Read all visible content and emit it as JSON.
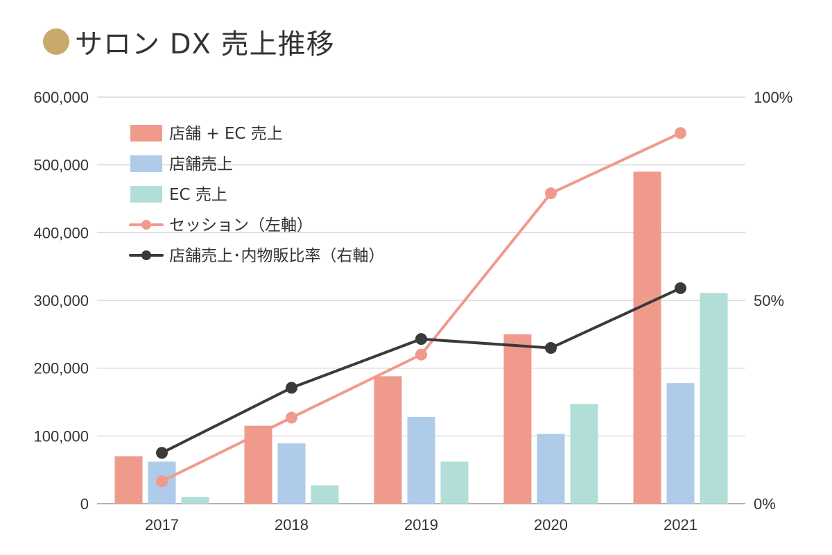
{
  "header": {
    "title": "サロン DX 売上推移",
    "dot_color": "#c8a96a"
  },
  "chart_data": {
    "type": "bar",
    "title": "サロン DX 売上推移",
    "categories": [
      "2017",
      "2018",
      "2019",
      "2020",
      "2021"
    ],
    "y_left": {
      "min": 0,
      "max": 600000,
      "ticks": [
        0,
        100000,
        200000,
        300000,
        400000,
        500000,
        600000
      ],
      "tick_labels": [
        "0",
        "100,000",
        "200,000",
        "300,000",
        "400,000",
        "500,000",
        "600,000"
      ]
    },
    "y_right": {
      "min": 0,
      "max": 100,
      "ticks": [
        0,
        50,
        100
      ],
      "tick_labels": [
        "0%",
        "50%",
        "100%"
      ]
    },
    "grid": true,
    "legend_position": "top-left",
    "series": [
      {
        "name": "店舗 + EC 売上",
        "type": "bar",
        "axis": "left",
        "color": "#f09a8c",
        "values": [
          70000,
          115000,
          188000,
          250000,
          490000
        ]
      },
      {
        "name": "店舗売上",
        "type": "bar",
        "axis": "left",
        "color": "#aecbea",
        "values": [
          62000,
          89000,
          128000,
          103000,
          178000
        ]
      },
      {
        "name": "EC 売上",
        "type": "bar",
        "axis": "left",
        "color": "#b1ded6",
        "values": [
          10000,
          27000,
          62000,
          147000,
          311000
        ]
      },
      {
        "name": "セッション（左軸）",
        "type": "line",
        "axis": "left",
        "color": "#f09a8c",
        "values": [
          33000,
          127000,
          220000,
          458000,
          547000
        ]
      },
      {
        "name": "店舗売上･内物販比率（右軸）",
        "type": "line",
        "axis": "right",
        "color": "#3a3a3a",
        "values": [
          12.5,
          28.5,
          40.5,
          38.3,
          53.0
        ]
      }
    ]
  }
}
